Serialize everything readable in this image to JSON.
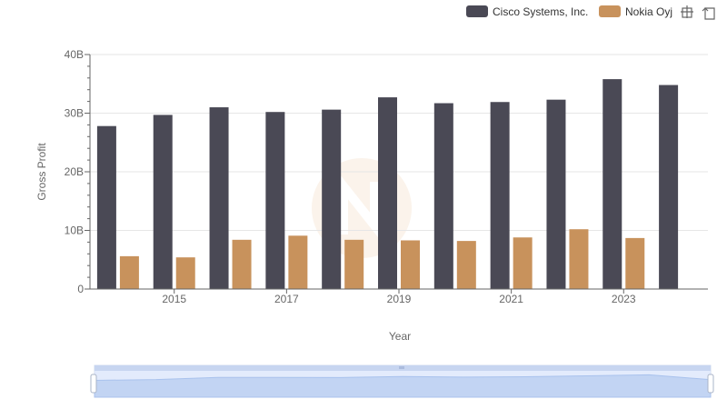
{
  "chart_data": {
    "type": "bar",
    "title": "",
    "xlabel": "Year",
    "ylabel": "Gross Profit",
    "x": [
      2014,
      2015,
      2016,
      2017,
      2018,
      2019,
      2020,
      2021,
      2022,
      2023,
      2024
    ],
    "x_tick_labels": [
      "2015",
      "2017",
      "2019",
      "2021",
      "2023"
    ],
    "x_tick_values": [
      2015,
      2017,
      2019,
      2021,
      2023
    ],
    "y_tick_labels": [
      "0",
      "10B",
      "20B",
      "30B",
      "40B"
    ],
    "y_tick_values": [
      0,
      10000000000,
      20000000000,
      30000000000,
      40000000000
    ],
    "ylim": [
      0,
      40000000000
    ],
    "series": [
      {
        "name": "Cisco Systems, Inc.",
        "color": "#4a4955",
        "values": [
          27800000000,
          29700000000,
          31000000000,
          30200000000,
          30600000000,
          32700000000,
          31700000000,
          31900000000,
          32300000000,
          35800000000,
          34800000000
        ]
      },
      {
        "name": "Nokia Oyj",
        "color": "#c8925c",
        "values": [
          5600000000,
          5400000000,
          8400000000,
          9100000000,
          8400000000,
          8300000000,
          8200000000,
          8800000000,
          10200000000,
          8700000000,
          null
        ]
      }
    ],
    "legend_position": "top-right",
    "grid": true
  },
  "toolbar": {
    "zoom_icon": "zoom-select-icon",
    "reset_icon": "zoom-reset-icon"
  }
}
